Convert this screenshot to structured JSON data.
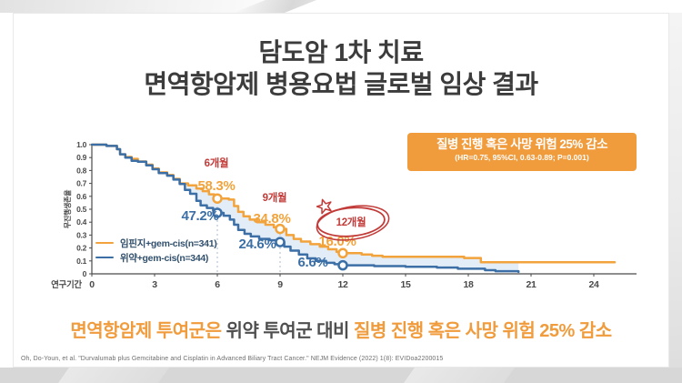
{
  "slide": {
    "title_line1": "담도암 1차 치료",
    "title_line2": "면역항암제 병용요법 글로벌 임상 결과",
    "badge": {
      "headline": "질병 진행 혹은 사망 위험 25% 감소",
      "detail": "(HR=0.75, 95%CI, 0.63-0.89; P=0.001)"
    },
    "bottom_message": {
      "part1_orange": "면역항암제 투여군은",
      "part2_gray": " 위약 투여군 대비 ",
      "part3_orange": "질병 진행 혹은 사망 위험 25% 감소"
    },
    "footnote": "Oh, Do-Youn, et al. \"Durvalumab plus Gemcitabine and Cisplatin in Advanced Biliary Tract Cancer.\" NEJM Evidence (2022) 1(8): EVIDoa2200015"
  },
  "colors": {
    "orange": "#F2A33C",
    "blue": "#3C6FA6",
    "red": "#C23B38",
    "band": "#D9E7F4",
    "badge_bg": "#F09B3C",
    "axis_text": "#4A4A4A",
    "legend_text": "#31506D"
  },
  "chart_data": {
    "type": "line",
    "subtype": "kaplan-meier-step",
    "title": "",
    "xlabel": "연구기간",
    "ylabel": "무진행생존율",
    "xlim": [
      0,
      24
    ],
    "ylim": [
      0,
      1.0
    ],
    "xticks": [
      0,
      3,
      6,
      9,
      12,
      15,
      18,
      21,
      24
    ],
    "ytick_labels": [
      "1.0",
      "0.9",
      "0.8",
      "0.7",
      "0.6",
      "0.5",
      "0.4",
      "0.3",
      "0.2",
      "0.1",
      "0"
    ],
    "grid": false,
    "legend_position": "lower-left",
    "band_fill": "#D9E7F4",
    "band_range": [
      4.2,
      20.4
    ],
    "guides": [
      6,
      9
    ],
    "series": [
      {
        "name": "임핀지+gem-cis(n=341)",
        "color": "#F2A33C",
        "points": [
          [
            0,
            1.0
          ],
          [
            0.7,
            0.99
          ],
          [
            1.2,
            0.965
          ],
          [
            1.35,
            0.925
          ],
          [
            1.6,
            0.905
          ],
          [
            1.9,
            0.89
          ],
          [
            2.2,
            0.87
          ],
          [
            2.6,
            0.845
          ],
          [
            2.9,
            0.815
          ],
          [
            3.2,
            0.785
          ],
          [
            3.6,
            0.765
          ],
          [
            3.9,
            0.735
          ],
          [
            4.2,
            0.7
          ],
          [
            4.6,
            0.685
          ],
          [
            5.0,
            0.66
          ],
          [
            5.3,
            0.64
          ],
          [
            5.6,
            0.615
          ],
          [
            5.85,
            0.6
          ],
          [
            6.0,
            0.583
          ],
          [
            6.55,
            0.575
          ],
          [
            6.8,
            0.525
          ],
          [
            7.0,
            0.48
          ],
          [
            7.25,
            0.445
          ],
          [
            7.55,
            0.42
          ],
          [
            7.9,
            0.4
          ],
          [
            8.3,
            0.38
          ],
          [
            8.7,
            0.36
          ],
          [
            9.0,
            0.348
          ],
          [
            9.3,
            0.3
          ],
          [
            9.65,
            0.27
          ],
          [
            10.0,
            0.25
          ],
          [
            10.45,
            0.23
          ],
          [
            10.9,
            0.21
          ],
          [
            11.3,
            0.19
          ],
          [
            11.7,
            0.17
          ],
          [
            12.0,
            0.16
          ],
          [
            12.9,
            0.15
          ],
          [
            13.4,
            0.14
          ],
          [
            13.9,
            0.132
          ],
          [
            17.8,
            0.122
          ],
          [
            18.6,
            0.09
          ],
          [
            25.0,
            0.09
          ]
        ]
      },
      {
        "name": "위약+gem-cis(n=344)",
        "color": "#3C6FA6",
        "points": [
          [
            0,
            1.0
          ],
          [
            0.7,
            0.99
          ],
          [
            1.2,
            0.965
          ],
          [
            1.35,
            0.925
          ],
          [
            1.6,
            0.9
          ],
          [
            1.9,
            0.875
          ],
          [
            2.2,
            0.868
          ],
          [
            2.6,
            0.84
          ],
          [
            2.9,
            0.81
          ],
          [
            3.2,
            0.78
          ],
          [
            3.6,
            0.76
          ],
          [
            3.9,
            0.73
          ],
          [
            4.2,
            0.695
          ],
          [
            4.45,
            0.65
          ],
          [
            4.7,
            0.62
          ],
          [
            5.0,
            0.565
          ],
          [
            5.2,
            0.53
          ],
          [
            5.5,
            0.51
          ],
          [
            5.8,
            0.49
          ],
          [
            6.0,
            0.472
          ],
          [
            6.3,
            0.45
          ],
          [
            6.6,
            0.42
          ],
          [
            6.8,
            0.38
          ],
          [
            7.0,
            0.34
          ],
          [
            7.3,
            0.31
          ],
          [
            7.6,
            0.29
          ],
          [
            8.0,
            0.27
          ],
          [
            8.5,
            0.26
          ],
          [
            9.0,
            0.246
          ],
          [
            9.2,
            0.21
          ],
          [
            9.5,
            0.18
          ],
          [
            9.9,
            0.15
          ],
          [
            10.3,
            0.12
          ],
          [
            10.7,
            0.1
          ],
          [
            11.2,
            0.085
          ],
          [
            11.6,
            0.075
          ],
          [
            12.0,
            0.066
          ],
          [
            13.5,
            0.06
          ],
          [
            15.0,
            0.055
          ],
          [
            16.5,
            0.048
          ],
          [
            17.5,
            0.04
          ],
          [
            18.8,
            0.028
          ],
          [
            19.3,
            0.02
          ],
          [
            20.4,
            0.015
          ]
        ]
      }
    ],
    "milestones": [
      {
        "month": 6,
        "label": "6개월",
        "points": [
          {
            "series": 0,
            "value": 0.583,
            "label": "58.3%"
          },
          {
            "series": 1,
            "value": 0.472,
            "label": "47.2%"
          }
        ]
      },
      {
        "month": 9,
        "label": "9개월",
        "points": [
          {
            "series": 0,
            "value": 0.348,
            "label": "34.8%"
          },
          {
            "series": 1,
            "value": 0.246,
            "label": "24.6%"
          }
        ]
      },
      {
        "month": 12,
        "label": "12개월",
        "circled": true,
        "points": [
          {
            "series": 0,
            "value": 0.16,
            "label": "16.0%"
          },
          {
            "series": 1,
            "value": 0.066,
            "label": "6.6%"
          }
        ]
      }
    ]
  }
}
